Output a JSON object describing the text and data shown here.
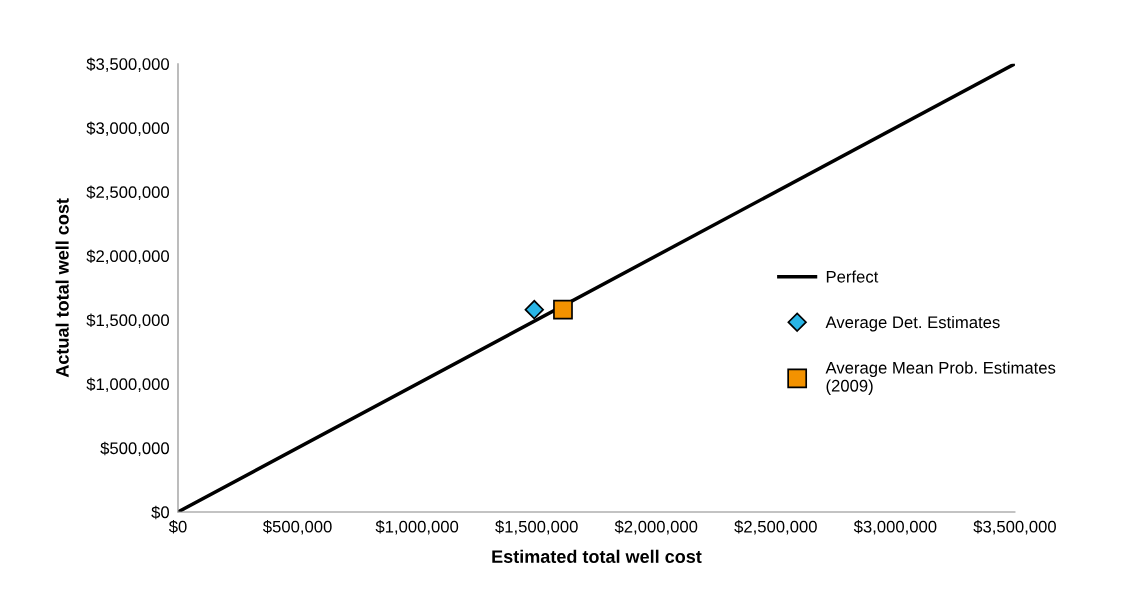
{
  "chart_data": {
    "type": "scatter",
    "xlabel": "Estimated total well cost",
    "ylabel": "Actual total well cost",
    "xlim": [
      0,
      3500000
    ],
    "ylim": [
      0,
      3500000
    ],
    "xticks": [
      {
        "value": 0,
        "label": "$0"
      },
      {
        "value": 500000,
        "label": "$500,000"
      },
      {
        "value": 1000000,
        "label": "$1,000,000"
      },
      {
        "value": 1500000,
        "label": "$1,500,000"
      },
      {
        "value": 2000000,
        "label": "$2,000,000"
      },
      {
        "value": 2500000,
        "label": "$2,500,000"
      },
      {
        "value": 3000000,
        "label": "$3,000,000"
      },
      {
        "value": 3500000,
        "label": "$3,500,000"
      }
    ],
    "yticks": [
      {
        "value": 0,
        "label": "$0"
      },
      {
        "value": 500000,
        "label": "$500,000"
      },
      {
        "value": 1000000,
        "label": "$1,000,000"
      },
      {
        "value": 1500000,
        "label": "$1,500,000"
      },
      {
        "value": 2000000,
        "label": "$2,000,000"
      },
      {
        "value": 2500000,
        "label": "$2,500,000"
      },
      {
        "value": 3000000,
        "label": "$3,000,000"
      },
      {
        "value": 3500000,
        "label": "$3,500,000"
      }
    ],
    "grid": false,
    "legend": "right",
    "series": [
      {
        "name": "Perfect",
        "type": "line",
        "color": "#000000",
        "marker": "none",
        "line_style": "solid",
        "x": [
          0,
          3500000
        ],
        "values": [
          0,
          3500000
        ]
      },
      {
        "name": "Average Det. Estimates",
        "color": "#29b5e6",
        "marker": "diamond",
        "x": [
          1490000
        ],
        "values": [
          1580000
        ]
      },
      {
        "name": "Average Mean Prob. Estimates\n(2009)",
        "color": "#f39200",
        "marker": "square",
        "x": [
          1610000
        ],
        "values": [
          1580000
        ]
      }
    ]
  }
}
